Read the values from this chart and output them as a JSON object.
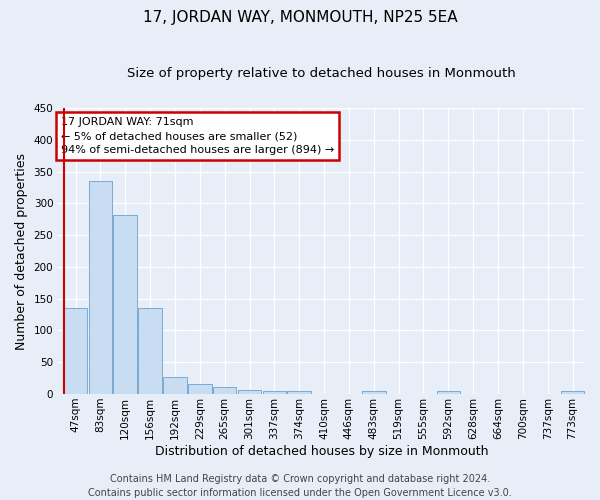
{
  "title": "17, JORDAN WAY, MONMOUTH, NP25 5EA",
  "subtitle": "Size of property relative to detached houses in Monmouth",
  "xlabel": "Distribution of detached houses by size in Monmouth",
  "ylabel": "Number of detached properties",
  "bar_labels": [
    "47sqm",
    "83sqm",
    "120sqm",
    "156sqm",
    "192sqm",
    "229sqm",
    "265sqm",
    "301sqm",
    "337sqm",
    "374sqm",
    "410sqm",
    "446sqm",
    "483sqm",
    "519sqm",
    "555sqm",
    "592sqm",
    "628sqm",
    "664sqm",
    "700sqm",
    "737sqm",
    "773sqm"
  ],
  "bar_values": [
    135,
    336,
    281,
    135,
    27,
    16,
    11,
    7,
    5,
    4,
    0,
    0,
    4,
    0,
    0,
    4,
    0,
    0,
    0,
    0,
    4
  ],
  "bar_color": "#c9ddf2",
  "bar_edge_color": "#7aaad4",
  "vline_color": "#cc0000",
  "annotation_box_text": "17 JORDAN WAY: 71sqm\n← 5% of detached houses are smaller (52)\n94% of semi-detached houses are larger (894) →",
  "annotation_box_edge_color": "#cc0000",
  "ylim": [
    0,
    450
  ],
  "footer_line1": "Contains HM Land Registry data © Crown copyright and database right 2024.",
  "footer_line2": "Contains public sector information licensed under the Open Government Licence v3.0.",
  "bg_color": "#e8eef8",
  "plot_bg_color": "#e8eef8",
  "grid_color": "#ffffff",
  "title_fontsize": 11,
  "subtitle_fontsize": 9.5,
  "axis_label_fontsize": 9,
  "tick_fontsize": 7.5,
  "footer_fontsize": 7,
  "annot_fontsize": 8
}
